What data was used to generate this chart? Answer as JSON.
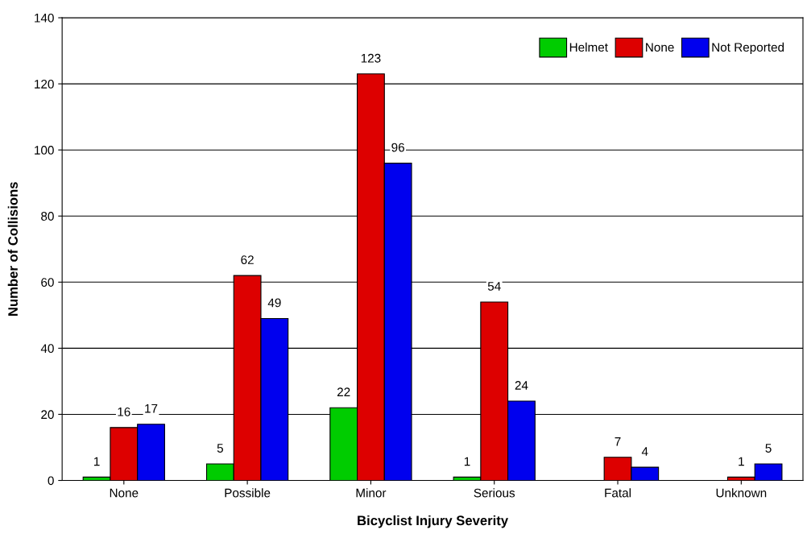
{
  "chart_data": {
    "type": "bar",
    "xlabel": "Bicyclist Injury Severity",
    "ylabel": "Number of Collisions",
    "categories": [
      "None",
      "Possible",
      "Minor",
      "Serious",
      "Fatal",
      "Unknown"
    ],
    "series": [
      {
        "name": "Helmet",
        "color": "#00cc00",
        "values": [
          1,
          5,
          22,
          1,
          null,
          null
        ]
      },
      {
        "name": "None",
        "color": "#dd0000",
        "values": [
          16,
          62,
          123,
          54,
          7,
          1
        ]
      },
      {
        "name": "Not Reported",
        "color": "#0000ee",
        "values": [
          17,
          49,
          96,
          24,
          4,
          5
        ]
      }
    ],
    "ylim": [
      0,
      140
    ],
    "yticks": [
      0,
      20,
      40,
      60,
      80,
      100,
      120,
      140
    ],
    "grid": "y",
    "legend": "top right",
    "data_labels": true
  }
}
